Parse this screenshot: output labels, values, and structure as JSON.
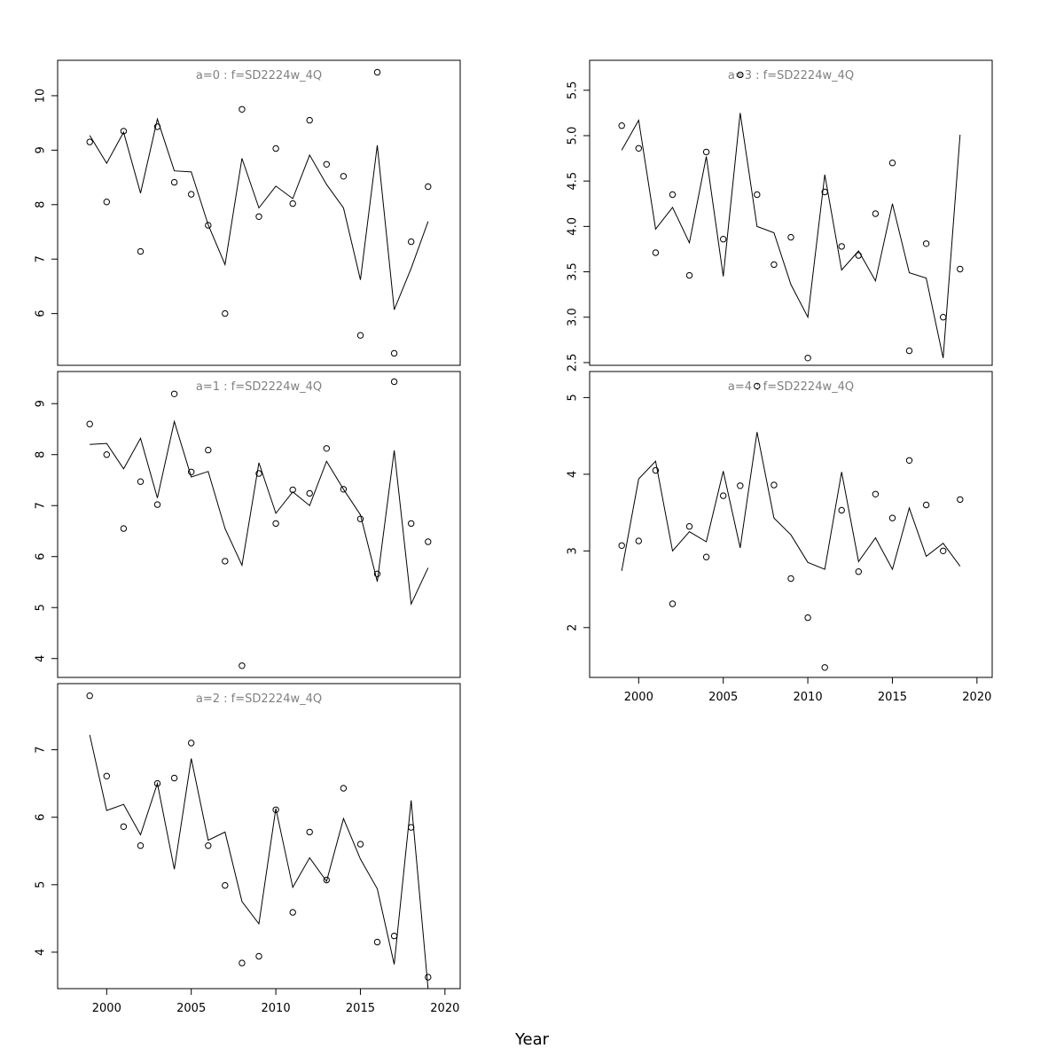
{
  "figure": {
    "xlabel": "Year"
  },
  "chart_data": [
    {
      "type": "scatter",
      "title": "a=0 : f=SD2224w_4Q",
      "xlim": [
        1997.1,
        2020.9
      ],
      "ylim": [
        5.05,
        10.65
      ],
      "xticks": [],
      "yticks": [
        6,
        7,
        8,
        9,
        10
      ],
      "series": [
        {
          "kind": "points",
          "x": [
            1999,
            2000,
            2001,
            2002,
            2003,
            2004,
            2005,
            2006,
            2007,
            2008,
            2009,
            2010,
            2011,
            2012,
            2013,
            2014,
            2015,
            2016,
            2017,
            2018,
            2019
          ],
          "y": [
            9.15,
            8.05,
            9.35,
            7.14,
            9.43,
            8.41,
            8.19,
            7.62,
            6.0,
            9.75,
            7.78,
            9.03,
            8.02,
            9.55,
            8.74,
            8.52,
            5.6,
            10.43,
            5.27,
            7.32,
            8.33
          ]
        },
        {
          "kind": "line",
          "x": [
            1999,
            2000,
            2001,
            2002,
            2003,
            2004,
            2005,
            2006,
            2007,
            2008,
            2009,
            2010,
            2011,
            2012,
            2013,
            2014,
            2015,
            2016,
            2017,
            2018,
            2019
          ],
          "y": [
            9.27,
            8.76,
            9.33,
            8.21,
            9.57,
            8.62,
            8.6,
            7.63,
            6.9,
            8.85,
            7.94,
            8.34,
            8.11,
            8.91,
            8.37,
            7.94,
            6.62,
            9.09,
            6.07,
            6.83,
            7.69
          ]
        }
      ]
    },
    {
      "type": "scatter",
      "title": "a=1 : f=SD2224w_4Q",
      "xlim": [
        1997.1,
        2020.9
      ],
      "ylim": [
        3.63,
        9.63
      ],
      "xticks": [],
      "yticks": [
        4,
        5,
        6,
        7,
        8,
        9
      ],
      "series": [
        {
          "kind": "points",
          "x": [
            1999,
            2000,
            2001,
            2002,
            2003,
            2004,
            2005,
            2006,
            2007,
            2008,
            2009,
            2010,
            2011,
            2012,
            2013,
            2014,
            2015,
            2016,
            2017,
            2018,
            2019
          ],
          "y": [
            8.6,
            8.0,
            6.55,
            7.47,
            7.02,
            9.19,
            7.66,
            8.09,
            5.91,
            3.86,
            7.63,
            6.65,
            7.31,
            7.24,
            8.12,
            7.32,
            6.74,
            5.66,
            9.43,
            6.65,
            6.29
          ]
        },
        {
          "kind": "line",
          "x": [
            1999,
            2000,
            2001,
            2002,
            2003,
            2004,
            2005,
            2006,
            2007,
            2008,
            2009,
            2010,
            2011,
            2012,
            2013,
            2014,
            2015,
            2016,
            2017,
            2018,
            2019
          ],
          "y": [
            8.2,
            8.22,
            7.72,
            8.32,
            7.15,
            8.65,
            7.56,
            7.67,
            6.55,
            5.83,
            7.84,
            6.85,
            7.27,
            7.0,
            7.87,
            7.32,
            6.82,
            5.51,
            8.08,
            5.07,
            5.78
          ]
        }
      ]
    },
    {
      "type": "scatter",
      "title": "a=2 : f=SD2224w_4Q",
      "xlim": [
        1997.1,
        2020.9
      ],
      "ylim": [
        3.46,
        7.98
      ],
      "xticks": [
        2000,
        2005,
        2010,
        2015,
        2020
      ],
      "yticks": [
        4,
        5,
        6,
        7
      ],
      "series": [
        {
          "kind": "points",
          "x": [
            1999,
            2000,
            2001,
            2002,
            2003,
            2004,
            2005,
            2006,
            2007,
            2008,
            2009,
            2010,
            2011,
            2012,
            2013,
            2014,
            2015,
            2016,
            2017,
            2018,
            2019
          ],
          "y": [
            7.8,
            6.61,
            5.86,
            5.58,
            6.5,
            6.58,
            7.1,
            5.58,
            4.99,
            3.84,
            3.94,
            6.11,
            4.59,
            5.78,
            5.07,
            6.43,
            5.6,
            4.15,
            4.24,
            5.85,
            3.63
          ]
        },
        {
          "kind": "line",
          "x": [
            1999,
            2000,
            2001,
            2002,
            2003,
            2004,
            2005,
            2006,
            2007,
            2008,
            2009,
            2010,
            2011,
            2012,
            2013,
            2014,
            2015,
            2016,
            2017,
            2018,
            2019
          ],
          "y": [
            7.22,
            6.1,
            6.19,
            5.74,
            6.5,
            5.23,
            6.87,
            5.66,
            5.78,
            4.75,
            4.42,
            6.13,
            4.96,
            5.4,
            5.05,
            5.98,
            5.38,
            4.94,
            3.82,
            6.25,
            3.46
          ]
        }
      ]
    },
    {
      "type": "scatter",
      "title": "a=3 : f=SD2224w_4Q",
      "xlim": [
        1997.1,
        2020.9
      ],
      "ylim": [
        2.47,
        5.83
      ],
      "xticks": [],
      "yticks": [
        2.5,
        3.0,
        3.5,
        4.0,
        4.5,
        5.0,
        5.5
      ],
      "series": [
        {
          "kind": "points",
          "x": [
            1999,
            2000,
            2001,
            2002,
            2003,
            2004,
            2005,
            2006,
            2007,
            2008,
            2009,
            2010,
            2011,
            2012,
            2013,
            2014,
            2015,
            2016,
            2017,
            2018,
            2019
          ],
          "y": [
            5.11,
            4.86,
            3.71,
            4.35,
            3.46,
            4.82,
            3.86,
            5.67,
            4.35,
            3.58,
            3.88,
            2.55,
            4.38,
            3.78,
            3.68,
            4.14,
            4.7,
            2.63,
            3.81,
            3.0,
            3.53
          ]
        },
        {
          "kind": "line",
          "x": [
            1999,
            2000,
            2001,
            2002,
            2003,
            2004,
            2005,
            2006,
            2007,
            2008,
            2009,
            2010,
            2011,
            2012,
            2013,
            2014,
            2015,
            2016,
            2017,
            2018,
            2019
          ],
          "y": [
            4.84,
            5.17,
            3.97,
            4.21,
            3.82,
            4.77,
            3.45,
            5.25,
            4.0,
            3.93,
            3.36,
            3.0,
            4.57,
            3.52,
            3.73,
            3.4,
            4.25,
            3.49,
            3.43,
            2.55,
            5.01
          ]
        }
      ]
    },
    {
      "type": "scatter",
      "title": "a=4 : f=SD2224w_4Q",
      "xlim": [
        1997.1,
        2020.9
      ],
      "ylim": [
        1.35,
        5.34
      ],
      "xticks": [
        2000,
        2005,
        2010,
        2015,
        2020
      ],
      "yticks": [
        2,
        3,
        4,
        5
      ],
      "series": [
        {
          "kind": "points",
          "x": [
            1999,
            2000,
            2001,
            2002,
            2003,
            2004,
            2005,
            2006,
            2007,
            2008,
            2009,
            2010,
            2011,
            2012,
            2013,
            2014,
            2015,
            2016,
            2017,
            2018,
            2019
          ],
          "y": [
            3.07,
            3.13,
            4.05,
            2.31,
            3.32,
            2.92,
            3.72,
            3.85,
            5.15,
            3.86,
            2.64,
            2.13,
            1.48,
            3.53,
            2.73,
            3.74,
            3.43,
            4.18,
            3.6,
            3.0,
            3.67
          ]
        },
        {
          "kind": "line",
          "x": [
            1999,
            2000,
            2001,
            2002,
            2003,
            2004,
            2005,
            2006,
            2007,
            2008,
            2009,
            2010,
            2011,
            2012,
            2013,
            2014,
            2015,
            2016,
            2017,
            2018,
            2019
          ],
          "y": [
            2.74,
            3.94,
            4.17,
            3.0,
            3.25,
            3.12,
            4.04,
            3.04,
            4.55,
            3.43,
            3.21,
            2.85,
            2.76,
            4.03,
            2.86,
            3.17,
            2.76,
            3.56,
            2.93,
            3.1,
            2.8
          ]
        }
      ]
    }
  ]
}
